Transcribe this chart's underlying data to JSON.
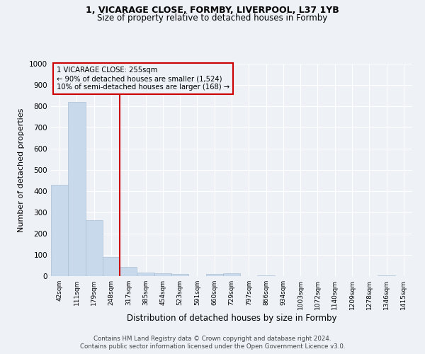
{
  "title_line1": "1, VICARAGE CLOSE, FORMBY, LIVERPOOL, L37 1YB",
  "title_line2": "Size of property relative to detached houses in Formby",
  "xlabel": "Distribution of detached houses by size in Formby",
  "ylabel": "Number of detached properties",
  "categories": [
    "42sqm",
    "111sqm",
    "179sqm",
    "248sqm",
    "317sqm",
    "385sqm",
    "454sqm",
    "523sqm",
    "591sqm",
    "660sqm",
    "729sqm",
    "797sqm",
    "866sqm",
    "934sqm",
    "1003sqm",
    "1072sqm",
    "1140sqm",
    "1209sqm",
    "1278sqm",
    "1346sqm",
    "1415sqm"
  ],
  "values": [
    430,
    820,
    265,
    90,
    42,
    18,
    15,
    10,
    0,
    10,
    12,
    0,
    5,
    0,
    0,
    0,
    0,
    0,
    0,
    5,
    0
  ],
  "bar_color": "#c8d9eb",
  "bar_edge_color": "#aabfd4",
  "vline_color": "#cc0000",
  "vline_pos": 3.5,
  "annotation_text": "1 VICARAGE CLOSE: 255sqm\n← 90% of detached houses are smaller (1,524)\n10% of semi-detached houses are larger (168) →",
  "box_color": "#cc0000",
  "ylim": [
    0,
    1000
  ],
  "yticks": [
    0,
    100,
    200,
    300,
    400,
    500,
    600,
    700,
    800,
    900,
    1000
  ],
  "footer_line1": "Contains HM Land Registry data © Crown copyright and database right 2024.",
  "footer_line2": "Contains public sector information licensed under the Open Government Licence v3.0.",
  "background_color": "#eef2f7",
  "grid_color": "#ffffff"
}
